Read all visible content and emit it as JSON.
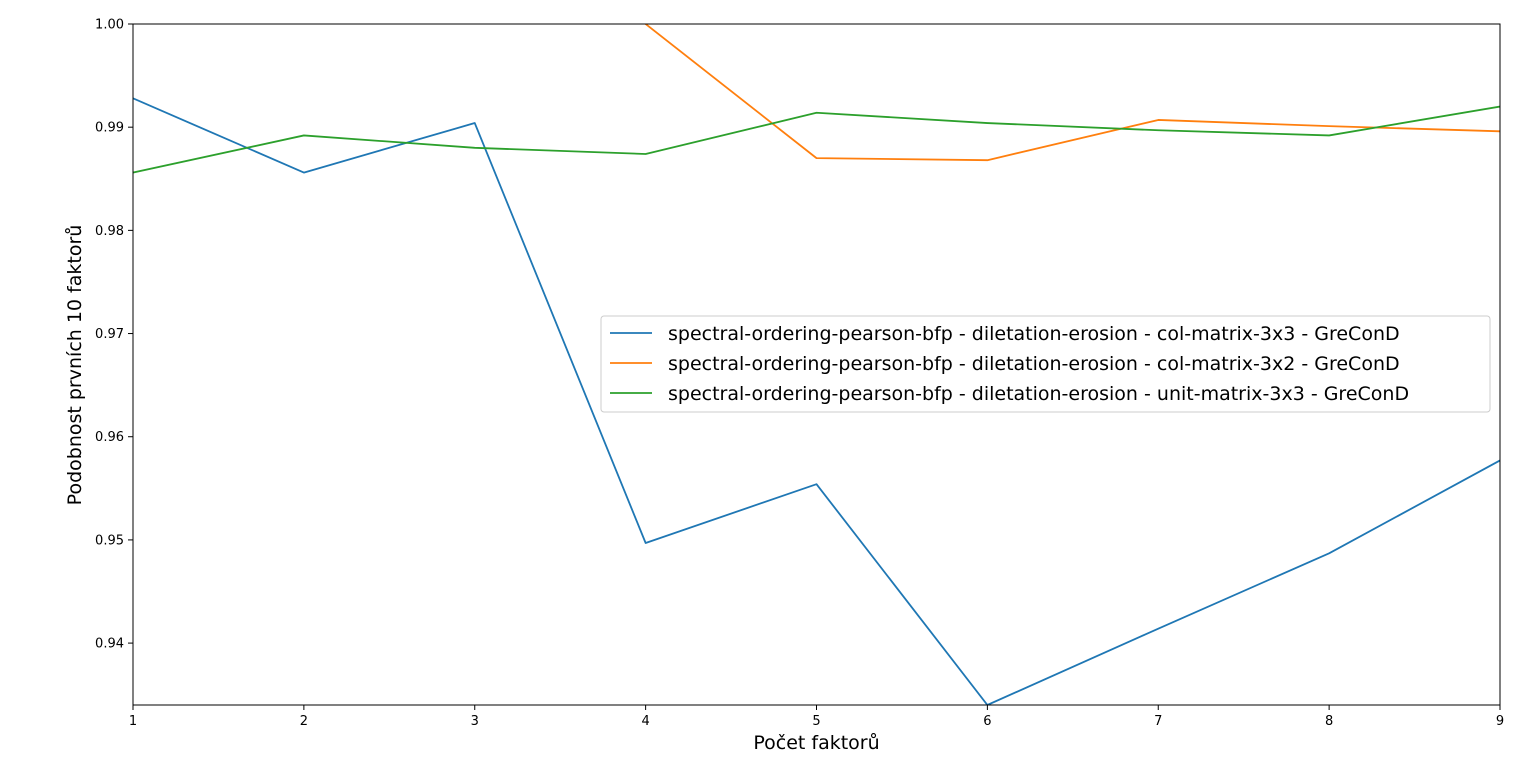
{
  "chart_data": {
    "type": "line",
    "title": "",
    "xlabel": "Počet faktorů",
    "ylabel": "Podobnost prvních 10 faktorů",
    "xlim": [
      1,
      9
    ],
    "ylim": [
      0.934,
      1.0
    ],
    "xticks": [
      1,
      2,
      3,
      4,
      5,
      6,
      7,
      8,
      9
    ],
    "yticks": [
      0.94,
      0.95,
      0.96,
      0.97,
      0.98,
      0.99,
      1.0
    ],
    "ytick_labels": [
      "0.94",
      "0.95",
      "0.96",
      "0.97",
      "0.98",
      "0.99",
      "1.00"
    ],
    "grid": false,
    "legend_position": "center-right",
    "x": [
      1,
      2,
      3,
      4,
      5,
      6,
      7,
      8,
      9
    ],
    "series": [
      {
        "name": "spectral-ordering-pearson-bfp - diletation-erosion - col-matrix-3x3 - GreConD",
        "color": "#1f77b4",
        "values": [
          0.9928,
          0.9856,
          0.9904,
          0.9497,
          0.9554,
          0.934,
          0.9414,
          0.9487,
          0.9577
        ]
      },
      {
        "name": "spectral-ordering-pearson-bfp - diletation-erosion - col-matrix-3x2 - GreConD",
        "color": "#ff7f0e",
        "values": [
          null,
          null,
          null,
          1.0,
          0.987,
          0.9868,
          0.9907,
          0.9901,
          0.9896
        ]
      },
      {
        "name": "spectral-ordering-pearson-bfp - diletation-erosion - unit-matrix-3x3 - GreConD",
        "color": "#2ca02c",
        "values": [
          0.9856,
          0.9892,
          0.988,
          0.9874,
          0.9914,
          0.9904,
          0.9897,
          0.9892,
          0.992
        ]
      }
    ]
  }
}
